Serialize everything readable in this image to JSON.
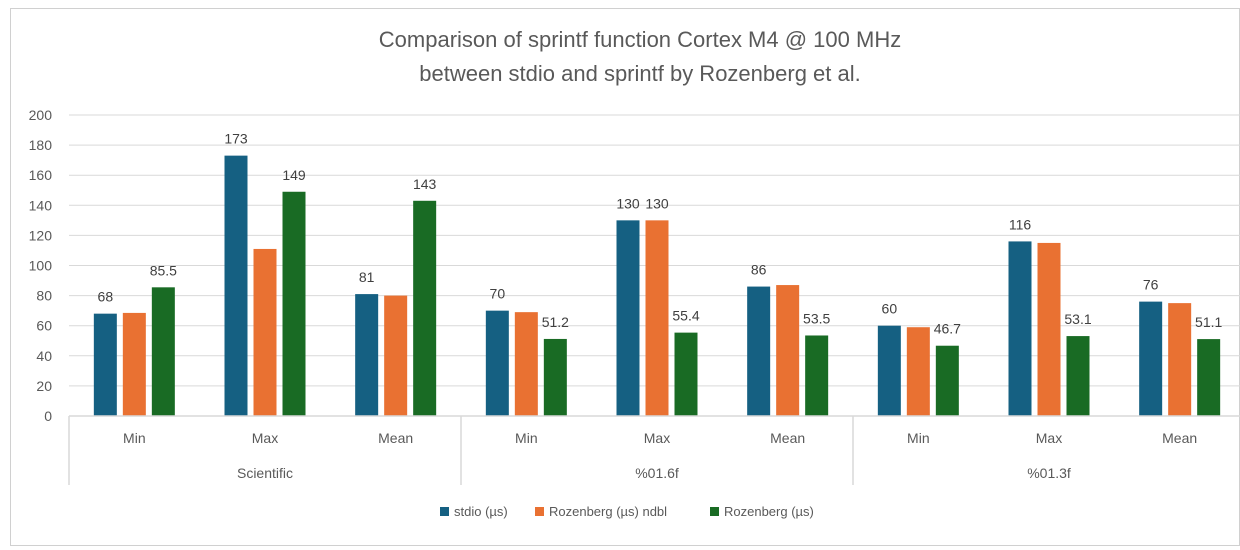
{
  "chart_data": {
    "type": "bar",
    "title": [
      "Comparison of sprintf function Cortex M4 @ 100 MHz",
      "between stdio and sprintf by Rozenberg et al."
    ],
    "groups": [
      "Scientific",
      "%01.6f",
      "%01.3f"
    ],
    "categories": [
      "Min",
      "Max",
      "Mean",
      "Min",
      "Max",
      "Mean",
      "Min",
      "Max",
      "Mean"
    ],
    "ylim": [
      0,
      200
    ],
    "yticks": [
      0,
      20,
      40,
      60,
      80,
      100,
      120,
      140,
      160,
      180,
      200
    ],
    "grid": true,
    "legend_position": "bottom",
    "series": [
      {
        "name": "stdio (µs)",
        "color": "#156082",
        "values": [
          68,
          173,
          81,
          70,
          130,
          86,
          60,
          116,
          76
        ],
        "labels": [
          "68",
          "173",
          "81",
          "70",
          "130",
          "86",
          "60",
          "116",
          "76"
        ]
      },
      {
        "name": "Rozenberg (µs) ndbl",
        "color": "#E97132",
        "values": [
          68.5,
          111,
          80,
          69,
          130,
          87,
          59,
          115,
          75
        ],
        "labels": [
          "",
          "",
          "",
          "",
          "130",
          "",
          "",
          "",
          ""
        ]
      },
      {
        "name": "Rozenberg (µs)",
        "color": "#196B24",
        "values": [
          85.5,
          149,
          143,
          51.2,
          55.4,
          53.5,
          46.7,
          53.1,
          51.1
        ],
        "labels": [
          "85.5",
          "149",
          "143",
          "51.2",
          "55.4",
          "53.5",
          "46.7",
          "53.1",
          "51.1"
        ]
      }
    ]
  }
}
